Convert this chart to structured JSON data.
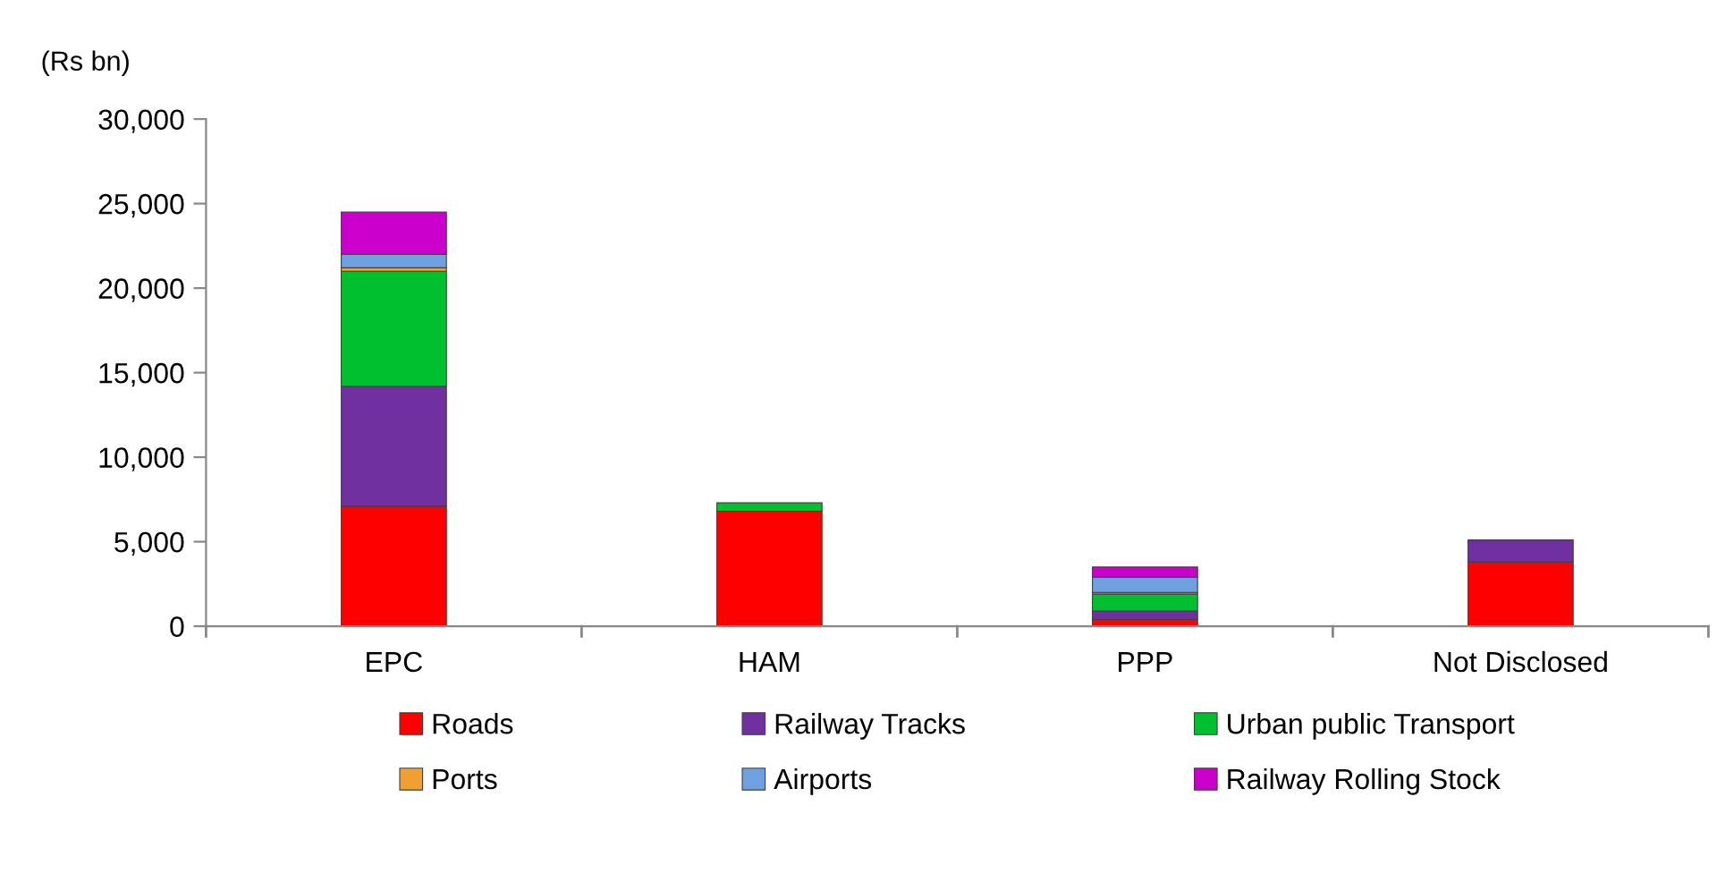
{
  "chart_data": {
    "type": "bar",
    "stacked": true,
    "ylabel": "(Rs bn)",
    "categories": [
      "EPC",
      "HAM",
      "PPP",
      "Not Disclosed"
    ],
    "series": [
      {
        "name": "Roads",
        "color": "#ff0000",
        "values": [
          7100,
          6800,
          400,
          3800
        ]
      },
      {
        "name": "Railway Tracks",
        "color": "#7030a0",
        "values": [
          7100,
          null,
          500,
          1300
        ]
      },
      {
        "name": "Urban public Transport",
        "color": "#00c030",
        "values": [
          6800,
          500,
          1000,
          null
        ]
      },
      {
        "name": "Ports",
        "color": "#f0a030",
        "values": [
          200,
          null,
          100,
          null
        ]
      },
      {
        "name": "Airports",
        "color": "#6fa0e0",
        "values": [
          800,
          null,
          900,
          null
        ]
      },
      {
        "name": "Railway Rolling Stock",
        "color": "#cc00cc",
        "values": [
          2500,
          null,
          600,
          null
        ]
      }
    ],
    "ylim": [
      0,
      30000
    ],
    "yticks": [
      {
        "value": 0,
        "label": "0"
      },
      {
        "value": 5000,
        "label": "5,000"
      },
      {
        "value": 10000,
        "label": "10,000"
      },
      {
        "value": 15000,
        "label": "15,000"
      },
      {
        "value": 20000,
        "label": "20,000"
      },
      {
        "value": 25000,
        "label": "25,000"
      },
      {
        "value": 30000,
        "label": "30,000"
      }
    ],
    "grid": false,
    "legend": "bottom"
  }
}
